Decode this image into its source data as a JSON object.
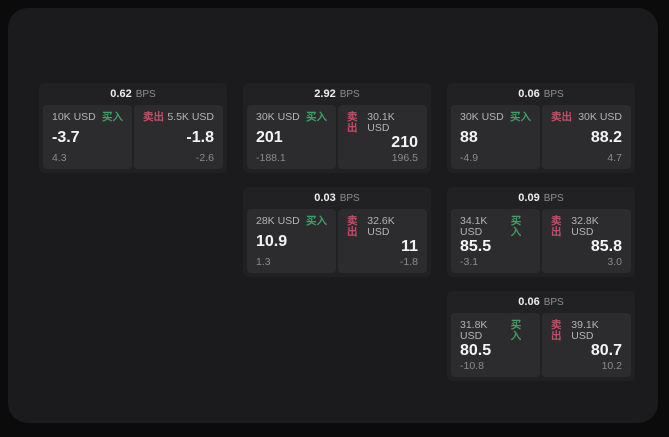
{
  "labels": {
    "bps_unit": "BPS",
    "buy": "买入",
    "sell": "卖出"
  },
  "colors": {
    "background": "#0b0b0b",
    "panel": "#1b1b1d",
    "card": "#212123",
    "tile": "#2c2c2e",
    "buy_green": "#3f9e66",
    "sell_red": "#c14f68",
    "value_white": "#f4f4f5",
    "muted_gray": "#8b8b8d"
  },
  "cards": [
    {
      "row": 1,
      "col": 1,
      "bps": "0.62",
      "buy": {
        "amount": "10K USD",
        "value": "-3.7",
        "delta": "4.3"
      },
      "sell": {
        "amount": "5.5K USD",
        "value": "-1.8",
        "delta": "-2.6"
      }
    },
    {
      "row": 1,
      "col": 2,
      "bps": "2.92",
      "buy": {
        "amount": "30K USD",
        "value": "201",
        "delta": "-188.1"
      },
      "sell": {
        "amount": "30.1K USD",
        "value": "210",
        "delta": "196.5"
      }
    },
    {
      "row": 1,
      "col": 3,
      "bps": "0.06",
      "buy": {
        "amount": "30K USD",
        "value": "88",
        "delta": "-4.9"
      },
      "sell": {
        "amount": "30K USD",
        "value": "88.2",
        "delta": "4.7"
      }
    },
    {
      "row": 2,
      "col": 2,
      "bps": "0.03",
      "buy": {
        "amount": "28K USD",
        "value": "10.9",
        "delta": "1.3"
      },
      "sell": {
        "amount": "32.6K USD",
        "value": "11",
        "delta": "-1.8"
      }
    },
    {
      "row": 2,
      "col": 3,
      "bps": "0.09",
      "buy": {
        "amount": "34.1K USD",
        "value": "85.5",
        "delta": "-3.1"
      },
      "sell": {
        "amount": "32.8K USD",
        "value": "85.8",
        "delta": "3.0"
      }
    },
    {
      "row": 3,
      "col": 3,
      "bps": "0.06",
      "buy": {
        "amount": "31.8K USD",
        "value": "80.5",
        "delta": "-10.8"
      },
      "sell": {
        "amount": "39.1K USD",
        "value": "80.7",
        "delta": "10.2"
      }
    }
  ]
}
